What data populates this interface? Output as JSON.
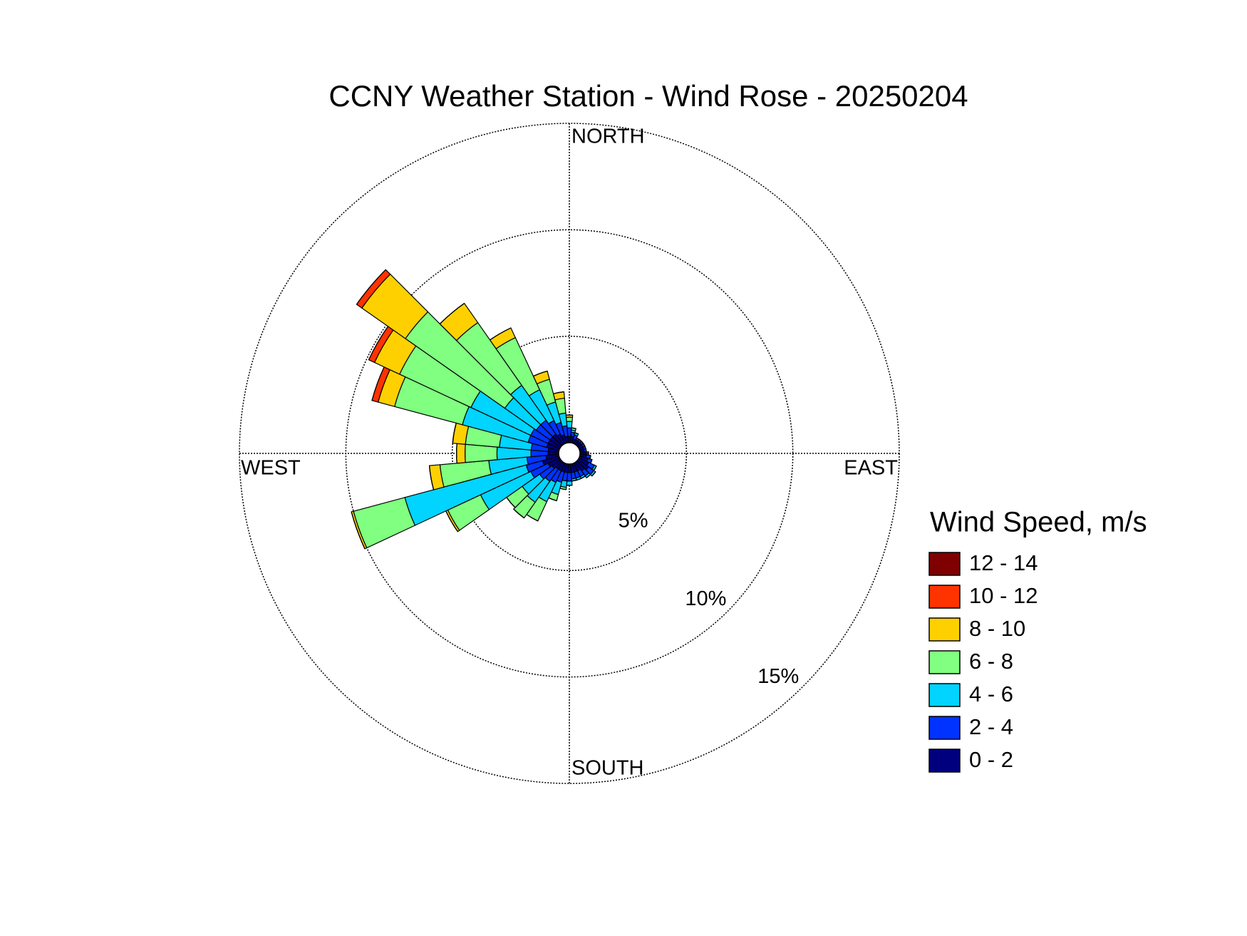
{
  "chart_data": {
    "type": "windrose",
    "title": "CCNY Weather Station - Wind Rose - 20250204",
    "direction_labels": [
      "NORTH",
      "EAST",
      "SOUTH",
      "WEST"
    ],
    "legend_title": "Wind Speed, m/s",
    "x": [
      0,
      10,
      20,
      30,
      40,
      50,
      60,
      70,
      80,
      90,
      100,
      110,
      120,
      130,
      140,
      150,
      160,
      170,
      180,
      190,
      200,
      210,
      220,
      230,
      240,
      250,
      260,
      270,
      280,
      290,
      300,
      310,
      320,
      330,
      340,
      350
    ],
    "xlim": [
      0,
      360
    ],
    "rlim": [
      0,
      15
    ],
    "rticks": [
      {
        "value": 5,
        "label": "5%"
      },
      {
        "value": 10,
        "label": "10%"
      },
      {
        "value": 15,
        "label": "15%"
      }
    ],
    "grid": true,
    "legend_position": "right",
    "series": [
      {
        "name": "0 - 2",
        "color": "#00007f",
        "values": [
          0.3,
          0.3,
          0.2,
          0.2,
          0.2,
          0.2,
          0.2,
          0.2,
          0.2,
          0.3,
          0.3,
          0.4,
          0.5,
          0.6,
          0.5,
          0.4,
          0.4,
          0.4,
          0.4,
          0.4,
          0.4,
          0.4,
          0.4,
          0.5,
          0.6,
          0.8,
          0.6,
          0.5,
          0.5,
          0.6,
          0.6,
          0.6,
          0.6,
          0.5,
          0.4,
          0.3
        ]
      },
      {
        "name": "2 - 4",
        "color": "#0033ff",
        "values": [
          0.4,
          0.2,
          0.2,
          0.1,
          0.1,
          0.1,
          0.1,
          0.1,
          0.1,
          0.1,
          0.2,
          0.2,
          0.3,
          0.3,
          0.3,
          0.3,
          0.3,
          0.3,
          0.4,
          0.4,
          0.5,
          0.6,
          0.7,
          0.7,
          0.9,
          0.8,
          0.9,
          0.8,
          0.8,
          0.9,
          0.9,
          0.8,
          0.8,
          0.7,
          0.6,
          0.5
        ]
      },
      {
        "name": "4 - 6",
        "color": "#00d4ff",
        "values": [
          0.3,
          0.1,
          0.1,
          0,
          0,
          0,
          0,
          0,
          0,
          0,
          0,
          0,
          0.1,
          0.1,
          0.1,
          0.1,
          0.1,
          0.1,
          0.2,
          0.3,
          0.6,
          1.0,
          1.2,
          1.0,
          2.6,
          5.9,
          1.8,
          1.6,
          1.5,
          3.2,
          3.1,
          1.8,
          2.0,
          1.6,
          1.0,
          0.6
        ]
      },
      {
        "name": "6 - 8",
        "color": "#80ff80",
        "values": [
          0.2,
          0.1,
          0,
          0,
          0,
          0,
          0,
          0,
          0,
          0,
          0,
          0,
          0,
          0,
          0,
          0,
          0,
          0,
          0,
          0.1,
          0.3,
          1.0,
          0.9,
          0.9,
          1.7,
          2.5,
          2.3,
          1.5,
          1.6,
          3.3,
          3.7,
          5.7,
          3.6,
          2.7,
          1.1,
          0.7
        ]
      },
      {
        "name": "8 - 10",
        "color": "#ffd000",
        "values": [
          0.1,
          0,
          0,
          0,
          0,
          0,
          0,
          0,
          0,
          0,
          0,
          0,
          0,
          0,
          0,
          0,
          0,
          0,
          0,
          0,
          0,
          0,
          0,
          0,
          0.1,
          0.1,
          0.5,
          0.4,
          0.6,
          0.8,
          1.3,
          2.5,
          1.1,
          0.5,
          0.4,
          0.3
        ]
      },
      {
        "name": "10 - 12",
        "color": "#ff3300",
        "values": [
          0,
          0,
          0,
          0,
          0,
          0,
          0,
          0,
          0,
          0,
          0,
          0,
          0,
          0,
          0,
          0,
          0,
          0,
          0,
          0,
          0,
          0,
          0,
          0,
          0,
          0,
          0,
          0,
          0,
          0.3,
          0.3,
          0.3,
          0,
          0,
          0,
          0
        ]
      },
      {
        "name": "12 - 14",
        "color": "#7f0000",
        "values": [
          0,
          0,
          0,
          0,
          0,
          0,
          0,
          0,
          0,
          0,
          0,
          0,
          0,
          0,
          0,
          0,
          0,
          0,
          0,
          0,
          0,
          0,
          0,
          0,
          0,
          0,
          0,
          0,
          0,
          0,
          0,
          0,
          0,
          0,
          0,
          0
        ]
      }
    ]
  }
}
